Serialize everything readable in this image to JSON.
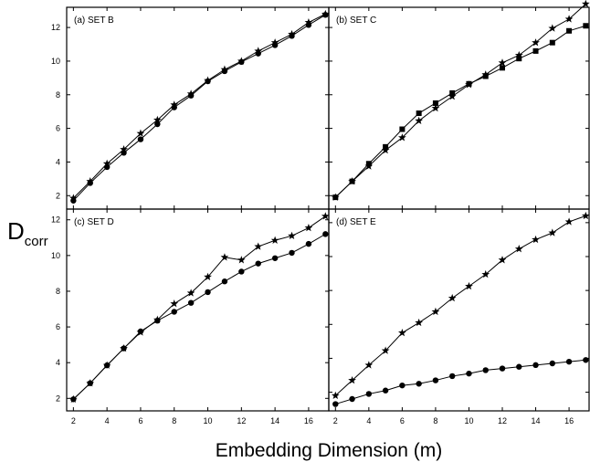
{
  "figure": {
    "xlabel": "Embedding Dimension (m)",
    "ylabel_main": "D",
    "ylabel_sub": "corr"
  },
  "chart_data": [
    {
      "type": "line",
      "title": "(a) SET B",
      "x": [
        2,
        3,
        4,
        5,
        6,
        7,
        8,
        9,
        10,
        11,
        12,
        13,
        14,
        15,
        16,
        17
      ],
      "xlim": [
        1.6,
        17.2
      ],
      "ylim": [
        1.2,
        13.2
      ],
      "xticks": [
        2,
        4,
        6,
        8,
        10,
        12,
        14,
        16
      ],
      "yticks": [
        2,
        4,
        6,
        8,
        10,
        12
      ],
      "series": [
        {
          "marker": "star",
          "values": [
            1.85,
            2.85,
            3.9,
            4.75,
            5.7,
            6.5,
            7.4,
            8.05,
            8.85,
            9.5,
            10.0,
            10.6,
            11.1,
            11.6,
            12.3,
            12.8
          ]
        },
        {
          "marker": "circle",
          "values": [
            1.7,
            2.75,
            3.7,
            4.55,
            5.35,
            6.25,
            7.25,
            7.95,
            8.8,
            9.4,
            9.95,
            10.45,
            10.95,
            11.5,
            12.15,
            12.75
          ]
        }
      ]
    },
    {
      "type": "line",
      "title": "(b) SET C",
      "x": [
        2,
        3,
        4,
        5,
        6,
        7,
        8,
        9,
        10,
        11,
        12,
        13,
        14,
        15,
        16,
        17
      ],
      "xlim": [
        1.6,
        17.2
      ],
      "ylim": [
        1.2,
        13.2
      ],
      "xticks": [
        2,
        4,
        6,
        8,
        10,
        12,
        14,
        16
      ],
      "yticks": [
        2,
        4,
        6,
        8,
        10,
        12
      ],
      "series": [
        {
          "marker": "star",
          "values": [
            1.9,
            2.85,
            3.75,
            4.7,
            5.45,
            6.45,
            7.2,
            7.9,
            8.6,
            9.2,
            9.9,
            10.35,
            11.1,
            11.95,
            12.5,
            13.4
          ]
        },
        {
          "marker": "square",
          "values": [
            1.9,
            2.85,
            3.9,
            4.9,
            5.95,
            6.9,
            7.5,
            8.1,
            8.65,
            9.1,
            9.6,
            10.15,
            10.6,
            11.1,
            11.8,
            12.1
          ]
        }
      ]
    },
    {
      "type": "line",
      "title": "(c) SET D",
      "x": [
        2,
        3,
        4,
        5,
        6,
        7,
        8,
        9,
        10,
        11,
        12,
        13,
        14,
        15,
        16,
        17
      ],
      "xlim": [
        1.6,
        17.2
      ],
      "ylim": [
        1.3,
        12.6
      ],
      "xticks": [
        2,
        4,
        6,
        8,
        10,
        12,
        14,
        16
      ],
      "yticks": [
        2,
        4,
        6,
        8,
        10,
        12
      ],
      "series": [
        {
          "marker": "star",
          "values": [
            1.95,
            2.85,
            3.85,
            4.8,
            5.7,
            6.4,
            7.3,
            7.9,
            8.8,
            9.9,
            9.75,
            10.5,
            10.85,
            11.1,
            11.55,
            12.2
          ]
        },
        {
          "marker": "circle",
          "values": [
            1.95,
            2.85,
            3.85,
            4.8,
            5.75,
            6.35,
            6.85,
            7.35,
            7.95,
            8.55,
            9.1,
            9.55,
            9.85,
            10.15,
            10.65,
            11.2
          ]
        }
      ]
    },
    {
      "type": "line",
      "title": "(d) SET E",
      "x": [
        2,
        3,
        4,
        5,
        6,
        7,
        8,
        9,
        10,
        11,
        12,
        13,
        14,
        15,
        16,
        17
      ],
      "xlim": [
        1.6,
        17.2
      ],
      "ylim": [
        0.9,
        12.8
      ],
      "xticks": [
        2,
        4,
        6,
        8,
        10,
        12,
        14,
        16
      ],
      "yticks": [
        2,
        4,
        6,
        8,
        10,
        12
      ],
      "series": [
        {
          "marker": "star",
          "values": [
            1.8,
            2.7,
            3.6,
            4.45,
            5.5,
            6.1,
            6.75,
            7.55,
            8.25,
            8.95,
            9.8,
            10.45,
            11.0,
            11.4,
            12.05,
            12.4
          ]
        },
        {
          "marker": "circle",
          "values": [
            1.3,
            1.6,
            1.9,
            2.1,
            2.4,
            2.5,
            2.7,
            2.95,
            3.1,
            3.3,
            3.4,
            3.5,
            3.6,
            3.7,
            3.8,
            3.9
          ]
        }
      ]
    }
  ]
}
